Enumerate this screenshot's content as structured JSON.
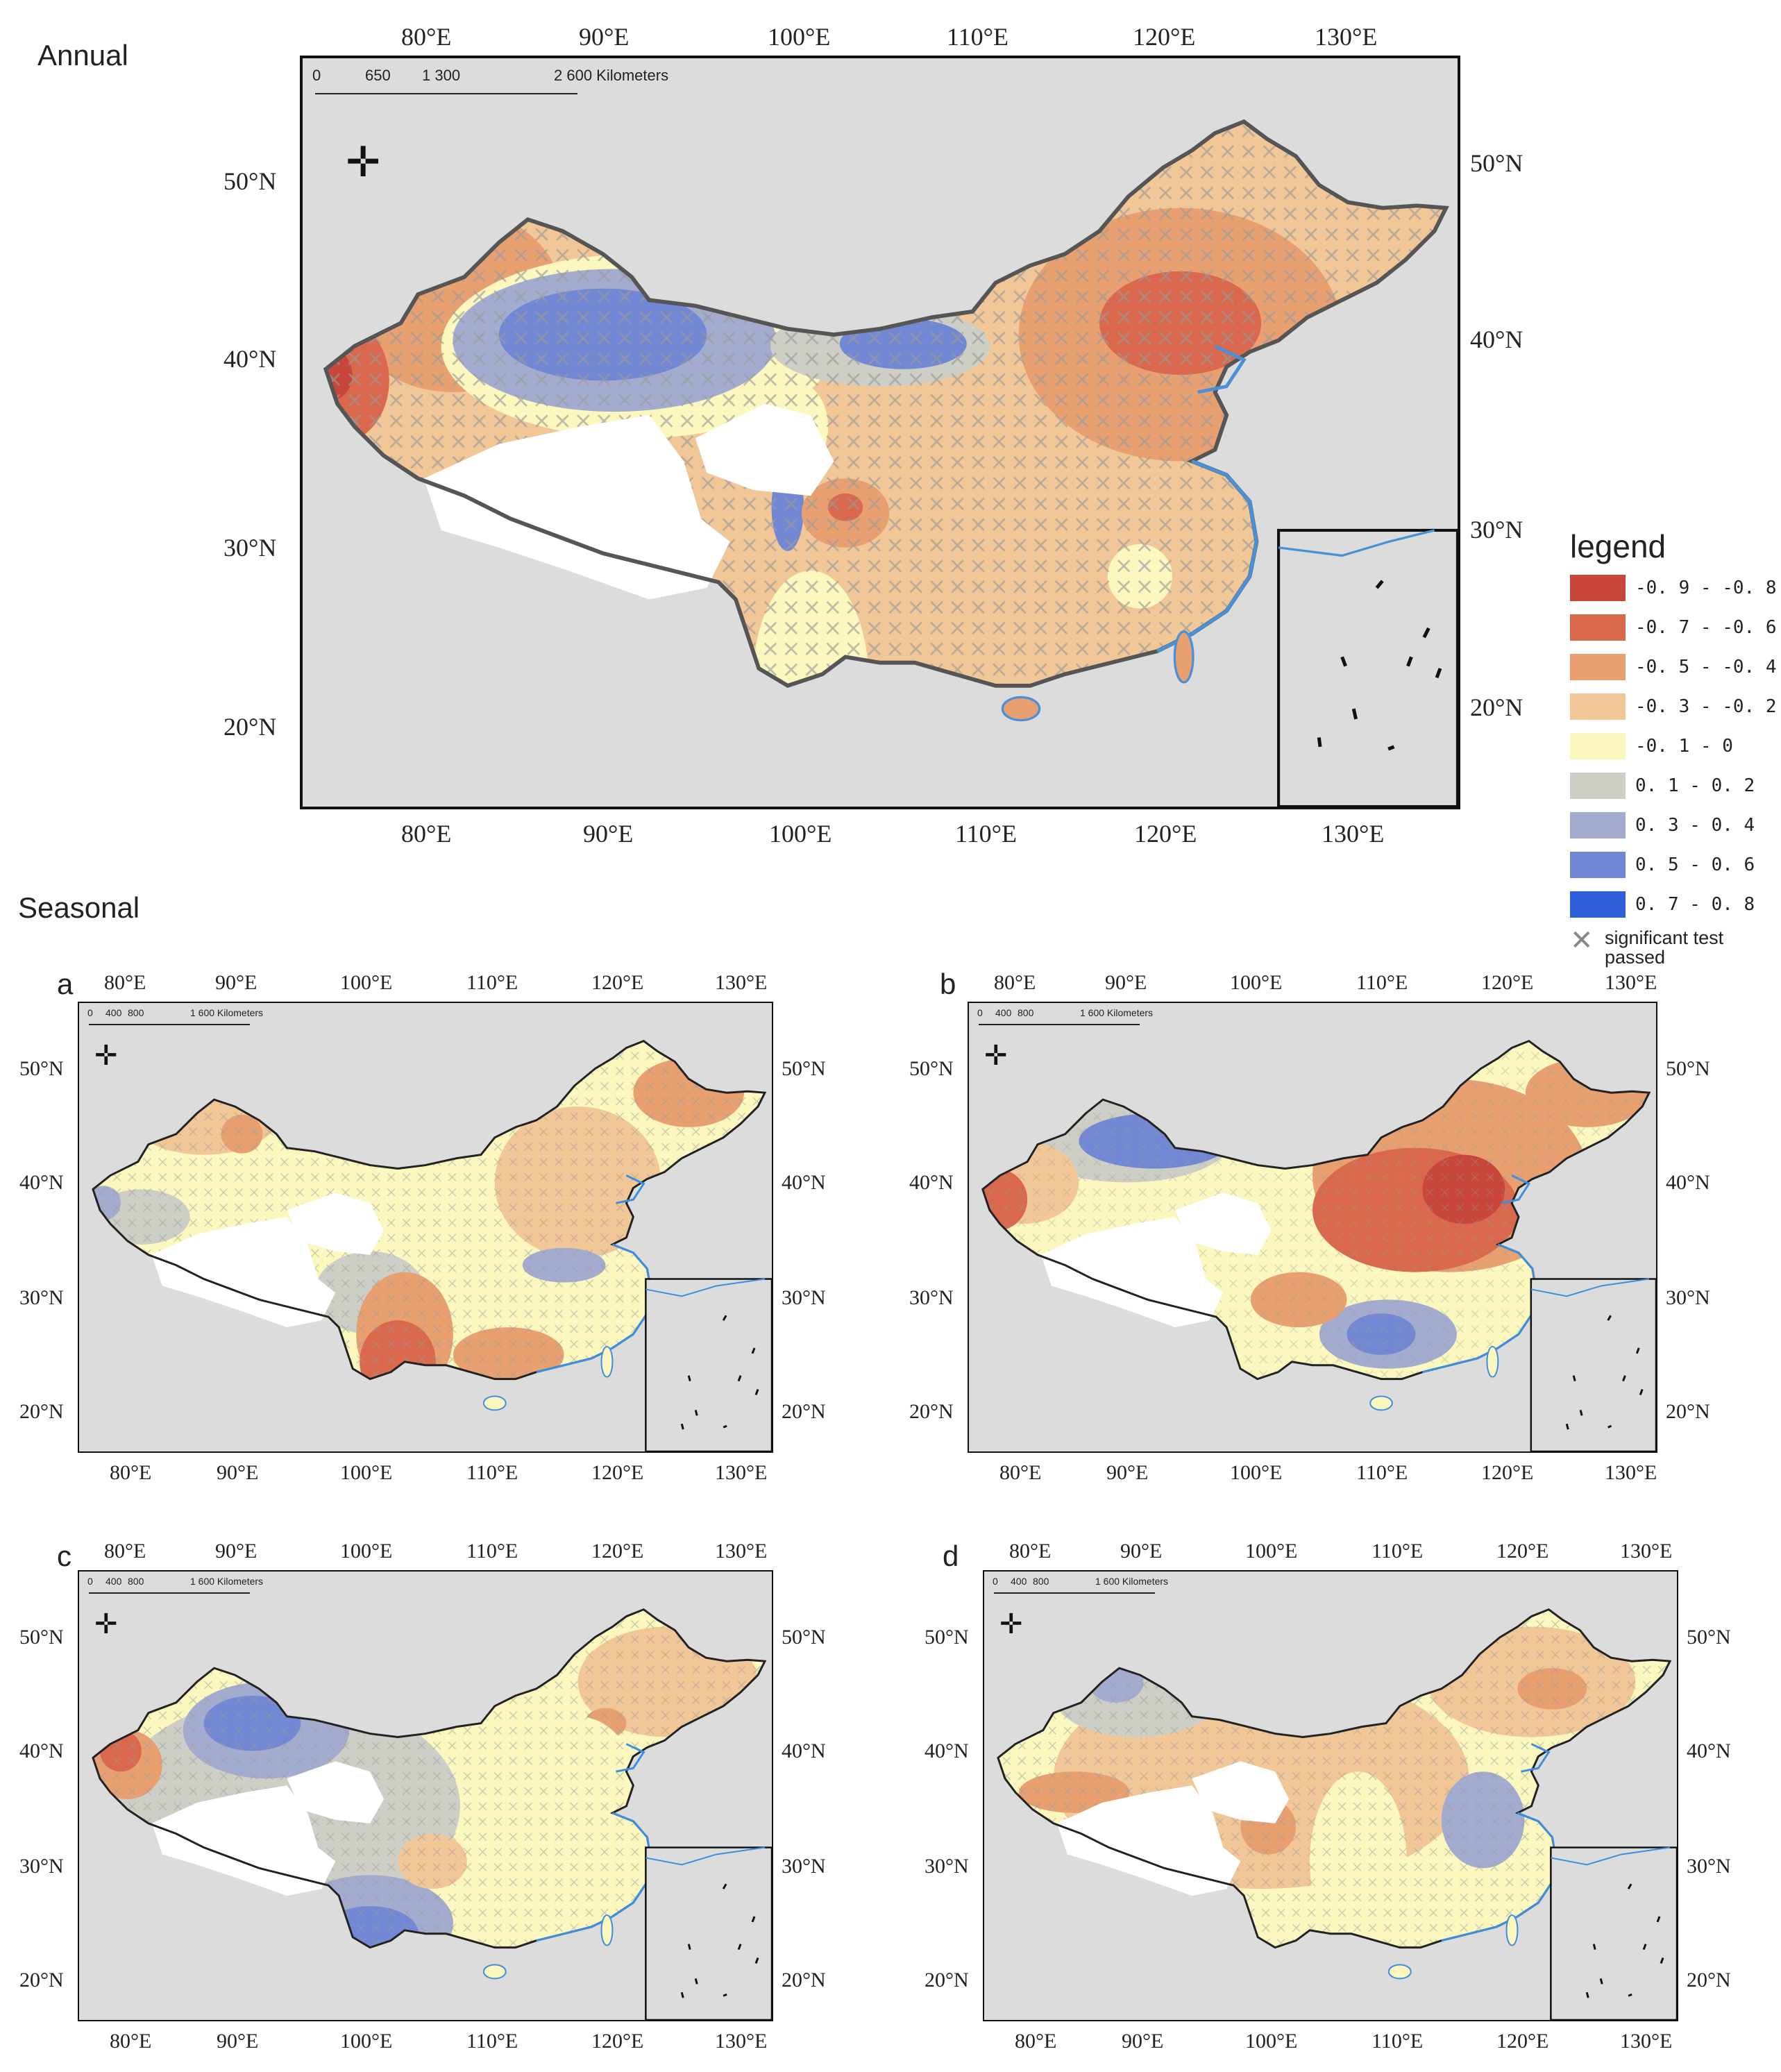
{
  "titles": {
    "annual": "Annual",
    "seasonal": "Seasonal"
  },
  "panels": {
    "annual": {
      "top_lon": [
        "80°E",
        "90°E",
        "100°E",
        "110°E",
        "120°E",
        "130°E"
      ],
      "bottom_lon": [
        "80°E",
        "90°E",
        "100°E",
        "110°E",
        "120°E",
        "130°E"
      ],
      "left_lat": [
        "50°N",
        "40°N",
        "30°N",
        "20°N"
      ],
      "right_lat": [
        "50°N",
        "40°N",
        "30°N",
        "20°N"
      ],
      "scale_labels": [
        "0",
        "650",
        "1 300",
        "2 600 Kilometers"
      ]
    },
    "a": {
      "letter": "a",
      "top_lon": [
        "80°E",
        "90°E",
        "100°E",
        "110°E",
        "120°E",
        "130°E"
      ],
      "bottom_lon": [
        "80°E",
        "90°E",
        "100°E",
        "110°E",
        "120°E",
        "130°E"
      ],
      "left_lat": [
        "50°N",
        "40°N",
        "30°N",
        "20°N"
      ],
      "right_lat": [
        "50°N",
        "40°N",
        "30°N",
        "20°N"
      ],
      "scale_labels": [
        "0",
        "400",
        "800",
        "1 600 Kilometers"
      ]
    },
    "b": {
      "letter": "b",
      "top_lon": [
        "80°E",
        "90°E",
        "100°E",
        "110°E",
        "120°E",
        "130°E"
      ],
      "bottom_lon": [
        "80°E",
        "90°E",
        "100°E",
        "110°E",
        "120°E",
        "130°E"
      ],
      "left_lat": [
        "50°N",
        "40°N",
        "30°N",
        "20°N"
      ],
      "right_lat": [
        "50°N",
        "40°N",
        "30°N",
        "20°N"
      ],
      "scale_labels": [
        "0",
        "400",
        "800",
        "1 600 Kilometers"
      ]
    },
    "c": {
      "letter": "c",
      "top_lon": [
        "80°E",
        "90°E",
        "100°E",
        "110°E",
        "120°E",
        "130°E"
      ],
      "bottom_lon": [
        "80°E",
        "90°E",
        "100°E",
        "110°E",
        "120°E",
        "130°E"
      ],
      "left_lat": [
        "50°N",
        "40°N",
        "30°N",
        "20°N"
      ],
      "right_lat": [
        "50°N",
        "40°N",
        "30°N",
        "20°N"
      ],
      "scale_labels": [
        "0",
        "400",
        "800",
        "1 600 Kilometers"
      ]
    },
    "d": {
      "letter": "d",
      "top_lon": [
        "80°E",
        "90°E",
        "100°E",
        "110°E",
        "120°E",
        "130°E"
      ],
      "bottom_lon": [
        "80°E",
        "90°E",
        "100°E",
        "110°E",
        "120°E",
        "130°E"
      ],
      "left_lat": [
        "50°N",
        "40°N",
        "30°N",
        "20°N"
      ],
      "right_lat": [
        "50°N",
        "40°N",
        "30°N",
        "20°N"
      ],
      "scale_labels": [
        "0",
        "400",
        "800",
        "1 600 Kilometers"
      ]
    }
  },
  "legend": {
    "title": "legend",
    "items": [
      {
        "label": "-0. 9 - -0. 8",
        "color": "#c8463a"
      },
      {
        "label": "-0. 7 - -0. 6",
        "color": "#d9684c"
      },
      {
        "label": "-0. 5 - -0. 4",
        "color": "#e8a070"
      },
      {
        "label": "-0. 3 - -0. 2",
        "color": "#f2c797"
      },
      {
        "label": "-0. 1 - 0",
        "color": "#fbf7be"
      },
      {
        "label": "0. 1 - 0. 2",
        "color": "#cdcfc6"
      },
      {
        "label": "0. 3 - 0. 4",
        "color": "#a3accf"
      },
      {
        "label": "0. 5 - 0. 6",
        "color": "#7388d4"
      },
      {
        "label": "0. 7 - 0. 8",
        "color": "#2f5fd8"
      }
    ],
    "significance_label": "significant test passed"
  },
  "colors": {
    "background": "#dcdcdc",
    "plateau": "#ffffff",
    "coast": "#4a90d9",
    "border": "#555555",
    "hatch": "#999999"
  }
}
